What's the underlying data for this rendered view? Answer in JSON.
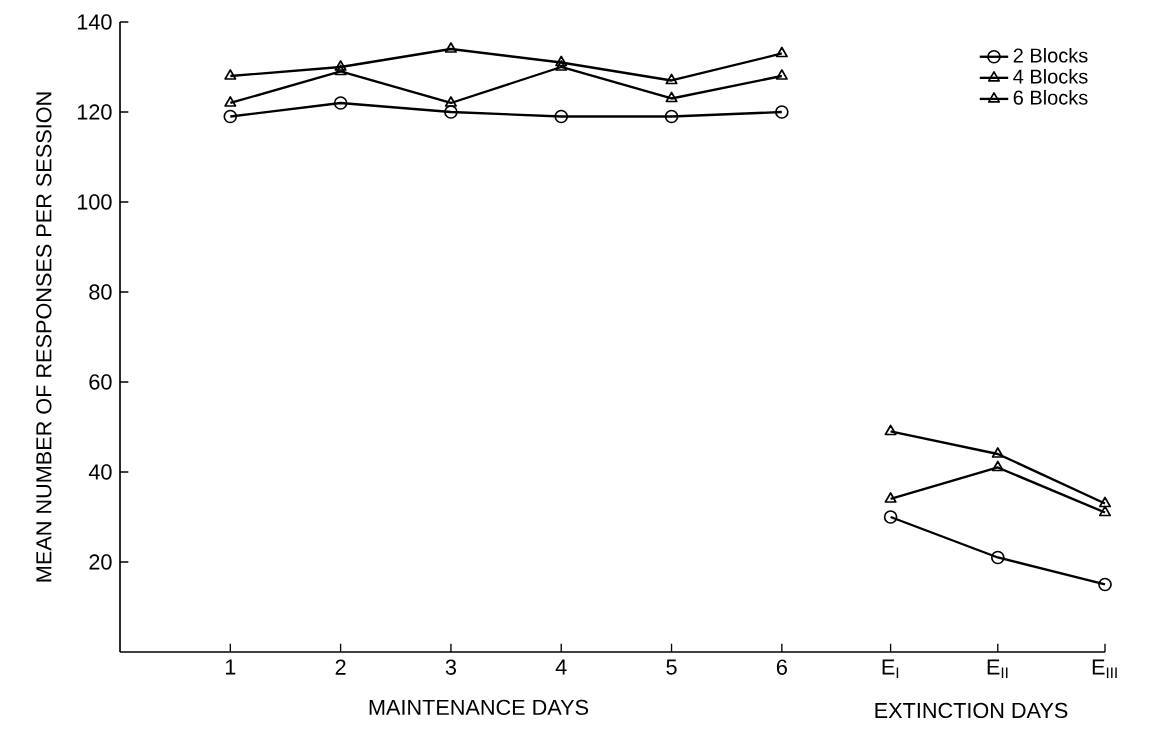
{
  "chart_data": [
    {
      "type": "line",
      "xlabel": "MAINTENANCE DAYS",
      "ylabel": "MEAN NUMBER OF RESPONSES PER SESSION",
      "categories": [
        "1",
        "2",
        "3",
        "4",
        "5",
        "6"
      ],
      "ylim": [
        0,
        140
      ],
      "yticks": [
        20,
        40,
        60,
        80,
        100,
        120,
        140
      ],
      "series": [
        {
          "color": "#000000",
          "marker": "circle",
          "values": [
            119,
            122,
            120,
            119,
            119,
            120
          ]
        },
        {
          "color": "#000000",
          "marker": "triangle",
          "values": [
            122,
            129,
            122,
            130,
            123,
            128
          ]
        },
        {
          "color": "#000000",
          "marker": "triangle",
          "values": [
            128,
            130,
            134,
            131,
            127,
            133
          ]
        }
      ]
    },
    {
      "type": "line",
      "xlabel": "EXTINCTION DAYS",
      "tick_labels": "x",
      "legend": "top right",
      "categories": [
        "E$_{I}$",
        "E$_{II}$",
        "E$_{III}$"
      ],
      "ylim": [
        0,
        140
      ],
      "yticks": [
        20,
        40,
        60,
        80,
        100,
        120,
        140
      ],
      "series": [
        {
          "name": "2 Blocks",
          "color": "#000000",
          "marker": "circle",
          "values": [
            30,
            21,
            15
          ]
        },
        {
          "name": "4 Blocks",
          "color": "#000000",
          "marker": "triangle",
          "values": [
            34,
            41,
            31
          ]
        },
        {
          "name": "6 Blocks",
          "color": "#000000",
          "marker": "triangle",
          "values": [
            49,
            44,
            33
          ]
        }
      ]
    }
  ]
}
